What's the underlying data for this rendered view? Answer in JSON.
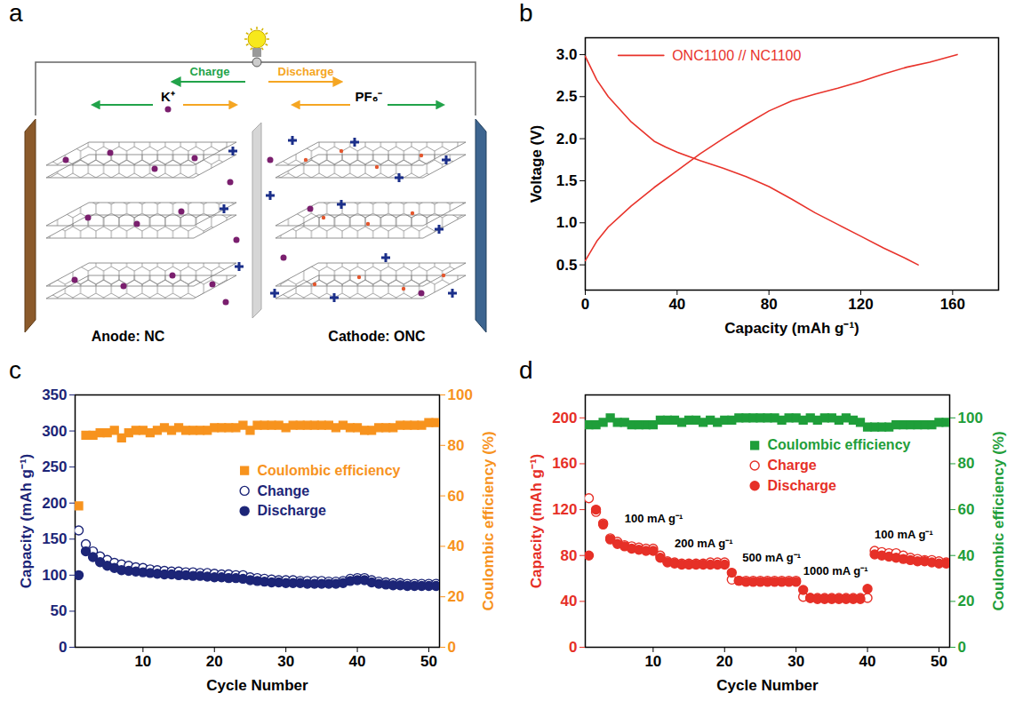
{
  "diagram": {
    "panel_label": "a",
    "type": "diagram",
    "labels": {
      "charge": "Charge",
      "discharge": "Discharge",
      "cation": "K⁺",
      "anion": "PF₆⁻",
      "anode": "Anode: NC",
      "cathode": "Cathode: ONC"
    }
  },
  "chart_data": [
    {
      "panel_label": "b",
      "type": "line",
      "x_label": "Capacity (mAh g⁻¹)",
      "y_label": "Voltage (V)",
      "xlim": [
        0,
        180
      ],
      "xticks": [
        0,
        40,
        80,
        120,
        160
      ],
      "ylim": [
        0.2,
        3.2
      ],
      "yticks": [
        {
          "value": 0.5,
          "label": "0.5"
        },
        {
          "value": 1,
          "label": "1.0"
        },
        {
          "value": 1.5,
          "label": "1.5"
        },
        {
          "value": 2,
          "label": "2.0"
        },
        {
          "value": 2.5,
          "label": "2.5"
        },
        {
          "value": 3,
          "label": "3.0"
        }
      ],
      "legend": "upper left",
      "series": [
        {
          "name": "ONC1100 // NC1100",
          "color": "#e8332b",
          "line_style": "solid",
          "x": [
            0,
            5,
            10,
            20,
            30,
            40,
            50,
            60,
            70,
            80,
            90,
            100,
            110,
            120,
            130,
            140,
            150,
            162
          ],
          "values": [
            0.55,
            0.78,
            0.95,
            1.2,
            1.42,
            1.62,
            1.82,
            2.0,
            2.17,
            2.33,
            2.45,
            2.53,
            2.6,
            2.68,
            2.77,
            2.85,
            2.91,
            3.0
          ]
        },
        {
          "color": "#e8332b",
          "line_style": "solid",
          "x": [
            0,
            5,
            10,
            20,
            30,
            35,
            40,
            50,
            60,
            70,
            80,
            90,
            100,
            110,
            120,
            130,
            140,
            145
          ],
          "values": [
            2.98,
            2.7,
            2.5,
            2.2,
            1.97,
            1.9,
            1.84,
            1.74,
            1.65,
            1.55,
            1.43,
            1.28,
            1.12,
            0.98,
            0.84,
            0.7,
            0.57,
            0.5
          ]
        }
      ]
    },
    {
      "panel_label": "c",
      "type": "scatter",
      "x_label": "Cycle Number",
      "y_label": "Capacity (mAh g⁻¹)",
      "y2_label": "Coulombic efficiency (%)",
      "x": [
        1,
        2,
        3,
        4,
        5,
        6,
        7,
        8,
        9,
        10,
        11,
        12,
        13,
        14,
        15,
        16,
        17,
        18,
        19,
        20,
        21,
        22,
        23,
        24,
        25,
        26,
        27,
        28,
        29,
        30,
        31,
        32,
        33,
        34,
        35,
        36,
        37,
        38,
        39,
        40,
        41,
        42,
        43,
        44,
        45,
        46,
        47,
        48,
        49,
        50,
        51
      ],
      "xlim": [
        0.5,
        51.5
      ],
      "xticks": [
        10,
        20,
        30,
        40,
        50
      ],
      "ylim": [
        0,
        350
      ],
      "yticks": [
        0,
        50,
        100,
        150,
        200,
        250,
        300,
        350
      ],
      "y2lim": [
        0,
        100
      ],
      "y2ticks": [
        0,
        20,
        40,
        60,
        80,
        100
      ],
      "legend": "right",
      "series": [
        {
          "name": "Coulombic efficiency",
          "color": "#f7931e",
          "marker": "square",
          "axis": "y2",
          "values": [
            56,
            84,
            84,
            85,
            85,
            86,
            83,
            85,
            86,
            86,
            85,
            86,
            87,
            86,
            87,
            86,
            86,
            86,
            86,
            87,
            87,
            87,
            87,
            88,
            86,
            88,
            88,
            88,
            88,
            87,
            88,
            88,
            88,
            88,
            88,
            88,
            87,
            88,
            87,
            87,
            86,
            86,
            87,
            87,
            87,
            88,
            88,
            88,
            88,
            89,
            89
          ]
        },
        {
          "name": "Change",
          "color": "#1c2577",
          "marker": "circle-open",
          "values": [
            162,
            143,
            133,
            126,
            121,
            117,
            115,
            113,
            111,
            110,
            108,
            107,
            106,
            105,
            105,
            104,
            104,
            103,
            103,
            102,
            101,
            101,
            100,
            100,
            97,
            96,
            95,
            94,
            93,
            93,
            93,
            92,
            92,
            92,
            92,
            91,
            91,
            92,
            95,
            96,
            96,
            93,
            91,
            90,
            89,
            89,
            88,
            88,
            88,
            88,
            88
          ]
        },
        {
          "name": "Discharge",
          "color": "#1c2577",
          "marker": "circle",
          "values": [
            100,
            133,
            125,
            118,
            113,
            110,
            107,
            106,
            105,
            104,
            103,
            102,
            101,
            101,
            100,
            100,
            99,
            99,
            98,
            97,
            97,
            96,
            96,
            95,
            93,
            92,
            91,
            90,
            90,
            89,
            89,
            89,
            88,
            88,
            88,
            88,
            88,
            89,
            92,
            93,
            93,
            90,
            88,
            87,
            86,
            86,
            85,
            85,
            85,
            85,
            85
          ]
        }
      ]
    },
    {
      "panel_label": "d",
      "type": "scatter",
      "x_label": "Cycle Number",
      "y_label": "Capacity (mAh g⁻¹)",
      "y2_label": "Coulombic efficiency (%)",
      "x": [
        1,
        2,
        3,
        4,
        5,
        6,
        7,
        8,
        9,
        10,
        11,
        12,
        13,
        14,
        15,
        16,
        17,
        18,
        19,
        20,
        21,
        22,
        23,
        24,
        25,
        26,
        27,
        28,
        29,
        30,
        31,
        32,
        33,
        34,
        35,
        36,
        37,
        38,
        39,
        40,
        41,
        42,
        43,
        44,
        45,
        46,
        47,
        48,
        49,
        50,
        51
      ],
      "xlim": [
        0.5,
        51.5
      ],
      "xticks": [
        10,
        20,
        30,
        40,
        50
      ],
      "ylim": [
        0,
        220
      ],
      "yticks": [
        0,
        40,
        80,
        120,
        160,
        200
      ],
      "y2lim": [
        0,
        110
      ],
      "y2ticks": [
        0,
        20,
        40,
        60,
        80,
        100
      ],
      "legend": "upper right",
      "annotations": [
        {
          "text": "100 mA g⁻¹",
          "x": 6,
          "y": 112
        },
        {
          "text": "200 mA g⁻¹",
          "x": 13,
          "y": 90
        },
        {
          "text": "500 mA g⁻¹",
          "x": 22.5,
          "y": 78
        },
        {
          "text": "1000 mA g⁻¹",
          "x": 31,
          "y": 66
        },
        {
          "text": "100 mA g⁻¹",
          "x": 41,
          "y": 98
        }
      ],
      "series": [
        {
          "name": "Coulombic efficiency",
          "color": "#1f9e3a",
          "marker": "square",
          "axis": "y2",
          "values": [
            97,
            97,
            98,
            100,
            98,
            98,
            97,
            97,
            97,
            97,
            99,
            99,
            99,
            98,
            99,
            99,
            98,
            99,
            98,
            99,
            99,
            100,
            100,
            100,
            100,
            100,
            100,
            99,
            100,
            100,
            99,
            100,
            99,
            100,
            100,
            99,
            100,
            99,
            98,
            96,
            96,
            96,
            96,
            97,
            97,
            97,
            97,
            97,
            97,
            98,
            98
          ]
        },
        {
          "name": "Charge",
          "color": "#e63027",
          "marker": "circle-open",
          "values": [
            130,
            118,
            108,
            95,
            92,
            89,
            88,
            87,
            86,
            86,
            80,
            75,
            74,
            73,
            73,
            73,
            73,
            74,
            74,
            74,
            59,
            58,
            58,
            58,
            58,
            58,
            58,
            58,
            58,
            58,
            44,
            43,
            43,
            43,
            43,
            43,
            43,
            43,
            43,
            43,
            84,
            83,
            82,
            82,
            80,
            78,
            77,
            76,
            76,
            75,
            74
          ]
        },
        {
          "name": "Discharge",
          "color": "#e63027",
          "marker": "circle",
          "values": [
            80,
            120,
            107,
            94,
            90,
            88,
            86,
            85,
            84,
            84,
            78,
            74,
            73,
            72,
            72,
            72,
            72,
            72,
            72,
            72,
            65,
            58,
            57,
            57,
            57,
            57,
            57,
            57,
            57,
            57,
            50,
            43,
            42,
            42,
            42,
            42,
            42,
            42,
            42,
            51,
            81,
            80,
            79,
            78,
            77,
            76,
            75,
            75,
            74,
            73,
            73
          ]
        }
      ]
    }
  ]
}
